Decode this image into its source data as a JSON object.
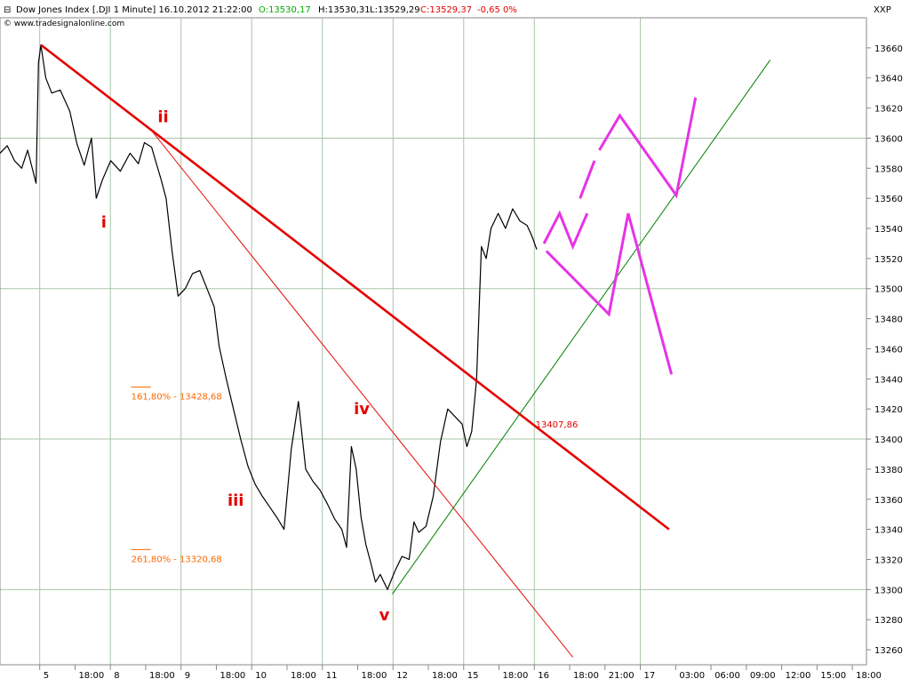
{
  "header": {
    "title": "Dow Jones Index [.DJI  1 Minute] 16.10.2012 21:22:00",
    "open_label": "O:13530,17",
    "high_label": "H:13530,31",
    "low_label": "L:13529,29",
    "close_label": "C:13529,37",
    "change_label": "-0,65 0%",
    "source": "© www.tradesignalonline.com",
    "symbol_badge": "XXP"
  },
  "colors": {
    "price": "#000000",
    "main_trendline": "#e60000",
    "thin_trendline": "#e60000",
    "green_trendline": "#008000",
    "projection": "#e633e6",
    "fib": "#ff6600",
    "grid": "#a9c4a9",
    "axis_up": "#00aa00",
    "axis_down": "#e60000"
  },
  "chart_data": {
    "type": "line",
    "title": "Dow Jones Index [.DJI  1 Minute] 16.10.2012 21:22:00",
    "ylim": [
      13250,
      13680
    ],
    "y_ticks": [
      13260,
      13280,
      13300,
      13320,
      13340,
      13360,
      13380,
      13400,
      13420,
      13440,
      13460,
      13480,
      13500,
      13520,
      13540,
      13560,
      13580,
      13600,
      13620,
      13640,
      13660
    ],
    "x_ticks": [
      "5",
      "18:00",
      "8",
      "18:00",
      "9",
      "18:00",
      "10",
      "18:00",
      "11",
      "18:00",
      "12",
      "18:00",
      "15",
      "18:00",
      "16",
      "18:00",
      "21:00",
      "17",
      "03:00",
      "06:00",
      "09:00",
      "12:00",
      "15:00",
      "18:00"
    ],
    "grid": true,
    "series": [
      {
        "style": "price",
        "points": [
          [
            0,
            13590
          ],
          [
            0.6,
            13595
          ],
          [
            1.2,
            13585
          ],
          [
            1.8,
            13580
          ],
          [
            2.3,
            13592
          ],
          [
            3.0,
            13570
          ],
          [
            3.2,
            13650
          ],
          [
            3.4,
            13662
          ],
          [
            3.8,
            13640
          ],
          [
            4.3,
            13630
          ],
          [
            5.0,
            13632
          ],
          [
            5.8,
            13618
          ],
          [
            6.4,
            13596
          ],
          [
            7.0,
            13582
          ],
          [
            7.6,
            13600
          ],
          [
            8.0,
            13560
          ],
          [
            8.5,
            13572
          ],
          [
            9.2,
            13585
          ],
          [
            10.0,
            13578
          ],
          [
            10.8,
            13590
          ],
          [
            11.5,
            13583
          ],
          [
            12.0,
            13597
          ],
          [
            12.6,
            13594
          ],
          [
            13.0,
            13583
          ],
          [
            13.4,
            13572
          ],
          [
            13.8,
            13560
          ],
          [
            14.3,
            13525
          ],
          [
            14.8,
            13495
          ],
          [
            15.4,
            13500
          ],
          [
            16.0,
            13510
          ],
          [
            16.6,
            13512
          ],
          [
            17.2,
            13500
          ],
          [
            17.8,
            13488
          ],
          [
            18.2,
            13462
          ],
          [
            18.8,
            13440
          ],
          [
            19.4,
            13420
          ],
          [
            20.0,
            13400
          ],
          [
            20.6,
            13382
          ],
          [
            21.2,
            13370
          ],
          [
            21.8,
            13362
          ],
          [
            22.4,
            13355
          ],
          [
            23.0,
            13348
          ],
          [
            23.6,
            13340
          ],
          [
            24.2,
            13393
          ],
          [
            24.8,
            13425
          ],
          [
            25.4,
            13380
          ],
          [
            26.0,
            13372
          ],
          [
            26.6,
            13366
          ],
          [
            27.2,
            13357
          ],
          [
            27.8,
            13347
          ],
          [
            28.4,
            13340
          ],
          [
            28.8,
            13328
          ],
          [
            29.2,
            13395
          ],
          [
            29.6,
            13380
          ],
          [
            30.0,
            13348
          ],
          [
            30.4,
            13330
          ],
          [
            30.8,
            13318
          ],
          [
            31.2,
            13305
          ],
          [
            31.6,
            13310
          ],
          [
            32.2,
            13300
          ],
          [
            32.8,
            13312
          ],
          [
            33.4,
            13322
          ],
          [
            34.0,
            13320
          ],
          [
            34.4,
            13345
          ],
          [
            34.8,
            13338
          ],
          [
            35.4,
            13342
          ],
          [
            36.0,
            13362
          ],
          [
            36.6,
            13398
          ],
          [
            37.2,
            13420
          ],
          [
            37.8,
            13415
          ],
          [
            38.4,
            13410
          ],
          [
            38.8,
            13395
          ],
          [
            39.2,
            13405
          ],
          [
            39.6,
            13440
          ],
          [
            40.0,
            13528
          ],
          [
            40.4,
            13520
          ],
          [
            40.8,
            13540
          ],
          [
            41.4,
            13550
          ],
          [
            42.0,
            13540
          ],
          [
            42.6,
            13553
          ],
          [
            43.2,
            13545
          ],
          [
            43.8,
            13542
          ],
          [
            44.2,
            13535
          ],
          [
            44.6,
            13526
          ]
        ]
      },
      {
        "style": "main_trendline",
        "points": [
          [
            3.4,
            13662
          ],
          [
            55.6,
            13340
          ]
        ]
      },
      {
        "style": "thin_trendline",
        "points": [
          [
            12.6,
            13605
          ],
          [
            47.6,
            13255
          ]
        ]
      },
      {
        "style": "green_trendline",
        "points": [
          [
            32.6,
            13297
          ],
          [
            64.0,
            13652
          ]
        ]
      },
      {
        "style": "projection",
        "segments": [
          [
            [
              45.2,
              13530
            ],
            [
              46.5,
              13550
            ],
            [
              47.6,
              13528
            ],
            [
              48.8,
              13550
            ]
          ],
          [
            [
              48.2,
              13560
            ],
            [
              49.4,
              13585
            ]
          ],
          [
            [
              49.8,
              13592
            ],
            [
              51.5,
              13615
            ],
            [
              56.2,
              13562
            ],
            [
              57.8,
              13627
            ]
          ],
          [
            [
              45.4,
              13525
            ],
            [
              50.6,
              13483
            ],
            [
              52.2,
              13550
            ],
            [
              55.8,
              13443
            ]
          ]
        ]
      }
    ],
    "annotations": [
      {
        "label": "i",
        "x": 8.4,
        "y": 13543
      },
      {
        "label": "ii",
        "x": 13.1,
        "y": 13613
      },
      {
        "label": "iii",
        "x": 18.9,
        "y": 13358
      },
      {
        "label": "iv",
        "x": 29.4,
        "y": 13419
      },
      {
        "label": "v",
        "x": 31.5,
        "y": 13282
      },
      {
        "label": "161,80% - 13428,68",
        "x": 10.9,
        "y": 13428.68
      },
      {
        "label": "261,80% - 13320,68",
        "x": 10.9,
        "y": 13320.68
      },
      {
        "label": "13407,86",
        "x": 44.5,
        "y": 13410
      }
    ]
  }
}
